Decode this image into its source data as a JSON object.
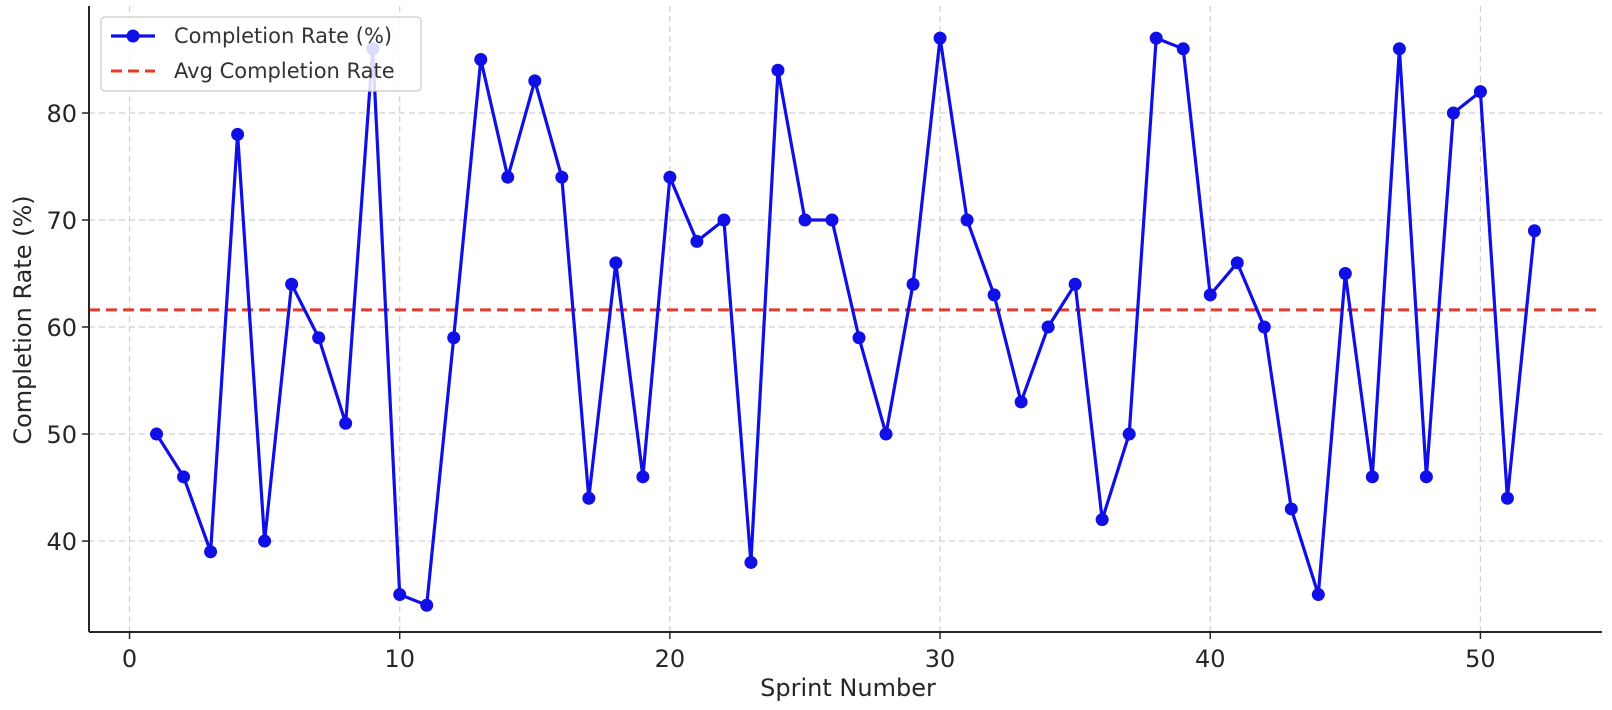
{
  "chart_data": {
    "type": "line",
    "title": "",
    "xlabel": "Sprint Number",
    "ylabel": "Completion Rate (%)",
    "xlim": [
      -1.5,
      54.5
    ],
    "ylim": [
      31.5,
      90.0
    ],
    "xticks": [
      0,
      10,
      20,
      30,
      40,
      50
    ],
    "yticks": [
      40,
      50,
      60,
      70,
      80
    ],
    "grid": true,
    "legend": "top-left",
    "x": [
      1,
      2,
      3,
      4,
      5,
      6,
      7,
      8,
      9,
      10,
      11,
      12,
      13,
      14,
      15,
      16,
      17,
      18,
      19,
      20,
      21,
      22,
      23,
      24,
      25,
      26,
      27,
      28,
      29,
      30,
      31,
      32,
      33,
      34,
      35,
      36,
      37,
      38,
      39,
      40,
      41,
      42,
      43,
      44,
      45,
      46,
      47,
      48,
      49,
      50,
      51,
      52
    ],
    "series": [
      {
        "name": "Completion Rate (%)",
        "color": "#0f0fe6",
        "values": [
          50,
          46,
          39,
          78,
          40,
          64,
          59,
          51,
          86,
          35,
          34,
          59,
          85,
          74,
          83,
          74,
          44,
          66,
          46,
          74,
          68,
          70,
          38,
          84,
          70,
          70,
          59,
          50,
          64,
          87,
          70,
          63,
          53,
          60,
          64,
          42,
          50,
          87,
          86,
          63,
          66,
          60,
          43,
          35,
          65,
          46,
          86,
          46,
          80,
          82,
          44,
          69
        ]
      },
      {
        "name": "Avg Completion Rate",
        "color": "#e8392b",
        "style": "dashed",
        "value": 61.6
      }
    ]
  }
}
